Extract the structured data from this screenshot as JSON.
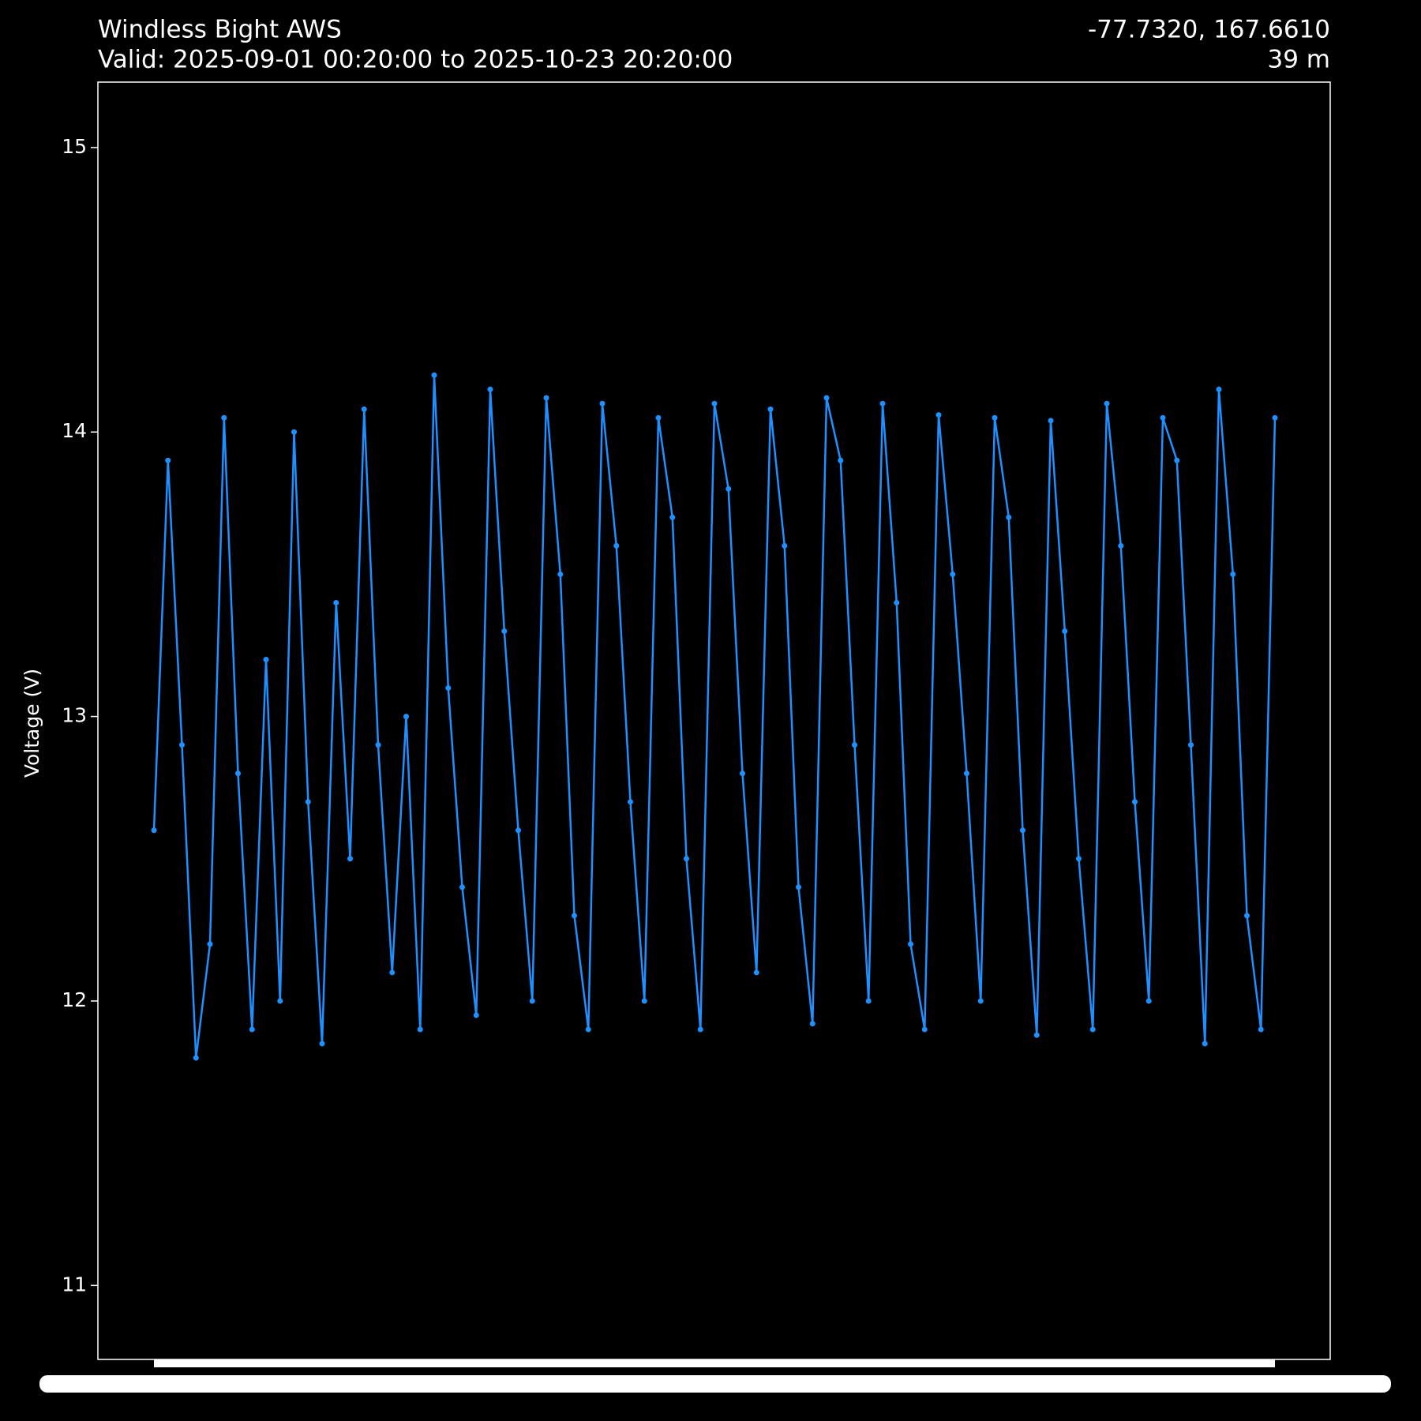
{
  "chart_data": {
    "type": "line",
    "title": "Windless Bight AWS",
    "subtitle": "Valid: 2025-09-01 00:20:00 to 2025-10-23 20:20:00",
    "location": "-77.7320, 167.6610",
    "elevation": "39 m",
    "y_label": "Voltage (V)",
    "ylim": [
      10.74,
      15.23
    ],
    "yticks": [
      11,
      12,
      13,
      14,
      15
    ],
    "color": "#1e90ff",
    "markers": true,
    "values": [
      12.6,
      13.9,
      12.9,
      11.8,
      12.2,
      14.05,
      12.8,
      11.9,
      13.2,
      12.0,
      14.0,
      12.7,
      11.85,
      13.4,
      12.5,
      14.08,
      12.9,
      12.1,
      13.0,
      11.9,
      14.2,
      13.1,
      12.4,
      11.95,
      14.15,
      13.3,
      12.6,
      12.0,
      14.12,
      13.5,
      12.3,
      11.9,
      14.1,
      13.6,
      12.7,
      12.0,
      14.05,
      13.7,
      12.5,
      11.9,
      14.1,
      13.8,
      12.8,
      12.1,
      14.08,
      13.6,
      12.4,
      11.92,
      14.12,
      13.9,
      12.9,
      12.0,
      14.1,
      13.4,
      12.2,
      11.9,
      14.06,
      13.5,
      12.8,
      12.0,
      14.05,
      13.7,
      12.6,
      11.88,
      14.04,
      13.3,
      12.5,
      11.9,
      14.1,
      13.6,
      12.7,
      12.0,
      14.05,
      13.9,
      12.9,
      11.85,
      14.15,
      13.5,
      12.3,
      11.9,
      14.05
    ]
  }
}
